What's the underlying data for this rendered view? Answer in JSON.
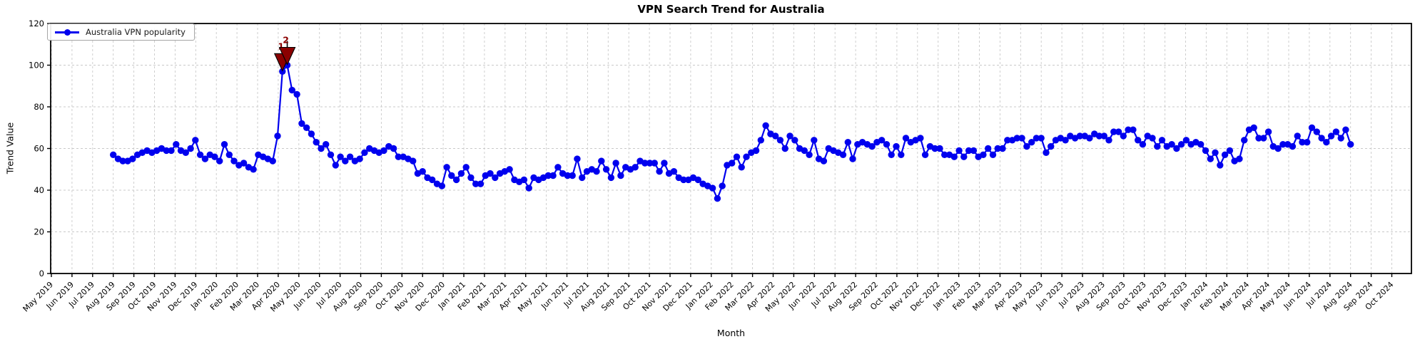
{
  "title": "VPN Search Trend for Australia",
  "xlabel": "Month",
  "ylabel": "Trend Value",
  "legend": {
    "label": "Australia VPN popularity"
  },
  "colors": {
    "line": "#0000EE",
    "marker": "#0000EE",
    "annotation": "#8B0000",
    "annotation_edge": "#000000",
    "grid": "#C9C9C9",
    "spine": "#000000",
    "background": "#FFFFFF",
    "tick_text": "#000000"
  },
  "chart_data": {
    "type": "line",
    "title": "VPN Search Trend for Australia",
    "xlabel": "Month",
    "ylabel": "Trend Value",
    "ylim": [
      0,
      120
    ],
    "yticks": [
      0,
      20,
      40,
      60,
      80,
      100,
      120
    ],
    "grid": true,
    "grid_style": "dashed",
    "legend_position": "upper left",
    "x_tick_labels": [
      "May 2019",
      "Jun 2019",
      "Jul 2019",
      "Aug 2019",
      "Sep 2019",
      "Oct 2019",
      "Nov 2019",
      "Dec 2019",
      "Jan 2020",
      "Feb 2020",
      "Mar 2020",
      "Apr 2020",
      "May 2020",
      "Jun 2020",
      "Jul 2020",
      "Aug 2020",
      "Sep 2020",
      "Oct 2020",
      "Nov 2020",
      "Dec 2020",
      "Jan 2021",
      "Feb 2021",
      "Mar 2021",
      "Apr 2021",
      "May 2021",
      "Jun 2021",
      "Jul 2021",
      "Aug 2021",
      "Sep 2021",
      "Oct 2021",
      "Nov 2021",
      "Dec 2021",
      "Jan 2022",
      "Feb 2022",
      "Mar 2022",
      "Apr 2022",
      "May 2022",
      "Jun 2022",
      "Jul 2022",
      "Aug 2022",
      "Sep 2022",
      "Oct 2022",
      "Nov 2022",
      "Dec 2022",
      "Jan 2023",
      "Feb 2023",
      "Mar 2023",
      "Apr 2023",
      "May 2023",
      "Jun 2023",
      "Jul 2023",
      "Aug 2023",
      "Sep 2023",
      "Oct 2023",
      "Nov 2023",
      "Dec 2023",
      "Jan 2024",
      "Feb 2024",
      "Mar 2024",
      "Apr 2024",
      "May 2024",
      "Jun 2024",
      "Jul 2024",
      "Aug 2024",
      "Sep 2024",
      "Oct 2024"
    ],
    "series": [
      {
        "name": "Australia VPN popularity",
        "color": "#0000EE",
        "marker": "circle",
        "frequency": "weekly",
        "first_point_month": "Aug 2019",
        "last_point_month": "Aug 2024",
        "values": [
          57,
          55,
          54,
          54,
          55,
          57,
          58,
          59,
          58,
          59,
          60,
          59,
          59,
          62,
          59,
          58,
          60,
          64,
          57,
          55,
          57,
          56,
          54,
          62,
          57,
          54,
          52,
          53,
          51,
          50,
          57,
          56,
          55,
          54,
          66,
          97,
          100,
          88,
          86,
          72,
          70,
          67,
          63,
          60,
          62,
          57,
          52,
          56,
          54,
          56,
          54,
          55,
          58,
          60,
          59,
          58,
          59,
          61,
          60,
          56,
          56,
          55,
          54,
          48,
          49,
          46,
          45,
          43,
          42,
          51,
          47,
          45,
          48,
          51,
          46,
          43,
          43,
          47,
          48,
          46,
          48,
          49,
          50,
          45,
          44,
          45,
          41,
          46,
          45,
          46,
          47,
          47,
          51,
          48,
          47,
          47,
          55,
          46,
          49,
          50,
          49,
          54,
          50,
          46,
          53,
          47,
          51,
          50,
          51,
          54,
          53,
          53,
          53,
          49,
          53,
          48,
          49,
          46,
          45,
          45,
          46,
          45,
          43,
          42,
          41,
          36,
          42,
          52,
          53,
          56,
          51,
          56,
          58,
          59,
          64,
          71,
          67,
          66,
          64,
          60,
          66,
          64,
          60,
          59,
          57,
          64,
          55,
          54,
          60,
          59,
          58,
          57,
          63,
          55,
          62,
          63,
          62,
          61,
          63,
          64,
          62,
          57,
          61,
          57,
          65,
          63,
          64,
          65,
          57,
          61,
          60,
          60,
          57,
          57,
          56,
          59,
          56,
          59,
          59,
          56,
          57,
          60,
          57,
          60,
          60,
          64,
          64,
          65,
          65,
          61,
          63,
          65,
          65,
          58,
          61,
          64,
          65,
          64,
          66,
          65,
          66,
          66,
          65,
          67,
          66,
          66,
          64,
          68,
          68,
          66,
          69,
          69,
          64,
          62,
          66,
          65,
          61,
          64,
          61,
          62,
          60,
          62,
          64,
          62,
          63,
          62,
          59,
          55,
          58,
          52,
          57,
          59,
          54,
          55,
          64,
          69,
          70,
          65,
          65,
          68,
          61,
          60,
          62,
          62,
          61,
          66,
          63,
          63,
          70,
          68,
          65,
          63,
          66,
          68,
          65,
          69,
          62
        ]
      }
    ],
    "annotations": [
      {
        "label": "1",
        "point_index": 35,
        "value": 97,
        "marker": "down-triangle",
        "color": "#8B0000"
      },
      {
        "label": "2",
        "point_index": 36,
        "value": 100,
        "marker": "down-triangle",
        "color": "#8B0000"
      }
    ]
  }
}
